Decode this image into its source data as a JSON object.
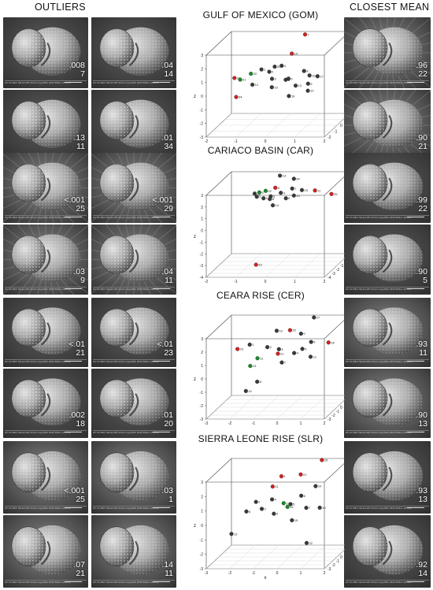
{
  "headers": {
    "outliers": "OUTLIERS",
    "closest_mean": "CLOSEST MEAN"
  },
  "panels": [
    {
      "title": "GULF OF MEXICO (GOM)",
      "outliers": [
        {
          "p": ".008",
          "id": "7"
        },
        {
          "p": ".04",
          "id": "14"
        },
        {
          "p": ".13",
          "id": "11"
        },
        {
          "p": ".01",
          "id": "34"
        }
      ],
      "closest": [
        {
          "p": ".96",
          "id": "22"
        },
        {
          "p": ".90",
          "id": "21"
        }
      ]
    },
    {
      "title": "CARIACO BASIN (CAR)",
      "outliers": [
        {
          "p": "<.001",
          "id": "25"
        },
        {
          "p": "<.001",
          "id": "29"
        },
        {
          "p": ".03",
          "id": "9"
        },
        {
          "p": ".04",
          "id": "11"
        }
      ],
      "closest": [
        {
          "p": ".99",
          "id": "22"
        },
        {
          "p": ".90",
          "id": "5"
        }
      ]
    },
    {
      "title": "CEARA RISE (CER)",
      "outliers": [
        {
          "p": "<.01",
          "id": "21"
        },
        {
          "p": "<.01",
          "id": "23"
        },
        {
          "p": ".002",
          "id": "18"
        },
        {
          "p": ".01",
          "id": "20"
        }
      ],
      "closest": [
        {
          "p": ".93",
          "id": "11"
        },
        {
          "p": ".90",
          "id": "13"
        }
      ]
    },
    {
      "title": "SIERRA LEONE RISE (SLR)",
      "outliers": [
        {
          "p": "<.001",
          "id": "25"
        },
        {
          "p": ".03",
          "id": "1"
        },
        {
          "p": ".07",
          "id": "21"
        },
        {
          "p": ".14",
          "id": "11"
        }
      ],
      "closest": [
        {
          "p": ".93",
          "id": "13"
        },
        {
          "p": ".92",
          "id": "14"
        }
      ]
    }
  ],
  "sem_meta": "HV 10.00kV  SE  det  WD 10mm  mag 600x  HFW 500um  100 um",
  "colors": {
    "outlier": "#d42020",
    "closest": "#1a8a2a",
    "specimen": "#3a3a3a"
  },
  "chart_data": [
    {
      "type": "scatter",
      "title": "GULF OF MEXICO (GOM)",
      "xlabel": "",
      "ylabel": "",
      "zlabel": "z",
      "xlim": [
        -2,
        2
      ],
      "ylim": [
        -2,
        2
      ],
      "zlim": [
        -3,
        3
      ],
      "x_ticks": [
        "-2",
        "-1",
        "0",
        "1",
        "2"
      ],
      "y_ticks": [
        "-2",
        "-1",
        "0",
        "1",
        "2"
      ],
      "z_ticks": [
        "-3",
        "-2",
        "-1",
        "0",
        "1",
        "2",
        "3"
      ],
      "points": [
        {
          "id": "7",
          "x": 0.6,
          "y": 1.5,
          "z": 3.0,
          "group": "outlier"
        },
        {
          "id": "14",
          "x": 0.3,
          "y": 0.8,
          "z": 1.9,
          "group": "outlier"
        },
        {
          "id": "11",
          "x": -1.6,
          "y": 0.6,
          "z": 0.2,
          "group": "outlier"
        },
        {
          "id": "34",
          "x": -1.2,
          "y": -1.0,
          "z": -0.5,
          "group": "outlier"
        },
        {
          "id": "22",
          "x": -1.0,
          "y": 0.4,
          "z": 0.6,
          "group": "closest"
        },
        {
          "id": "21",
          "x": -1.3,
          "y": 0.1,
          "z": 0.3,
          "group": "closest"
        },
        {
          "id": "1",
          "x": -0.6,
          "y": 0.2,
          "z": 1.0,
          "group": "other"
        },
        {
          "id": "2",
          "x": -0.4,
          "y": 0.5,
          "z": 0.7,
          "group": "other"
        },
        {
          "id": "3",
          "x": -0.2,
          "y": 0.0,
          "z": 0.4,
          "group": "other"
        },
        {
          "id": "4",
          "x": 0.0,
          "y": 0.6,
          "z": 1.1,
          "group": "other"
        },
        {
          "id": "5",
          "x": 0.2,
          "y": 0.3,
          "z": 0.2,
          "group": "other"
        },
        {
          "id": "6",
          "x": 0.4,
          "y": -0.2,
          "z": 0.5,
          "group": "other"
        },
        {
          "id": "8",
          "x": 0.8,
          "y": 0.4,
          "z": 0.8,
          "group": "other"
        },
        {
          "id": "9",
          "x": 1.0,
          "y": 0.1,
          "z": 0.0,
          "group": "other"
        },
        {
          "id": "10",
          "x": 1.1,
          "y": -0.4,
          "z": -0.3,
          "group": "other"
        },
        {
          "id": "12",
          "x": -0.8,
          "y": -0.3,
          "z": 0.1,
          "group": "other"
        },
        {
          "id": "13",
          "x": 0.6,
          "y": 0.0,
          "z": -0.1,
          "group": "other"
        },
        {
          "id": "15",
          "x": -0.1,
          "y": -0.5,
          "z": 0.0,
          "group": "other"
        },
        {
          "id": "16",
          "x": 0.9,
          "y": 0.8,
          "z": 0.3,
          "group": "other"
        },
        {
          "id": "17",
          "x": 1.3,
          "y": 0.2,
          "z": 0.5,
          "group": "other"
        },
        {
          "id": "18",
          "x": 2.0,
          "y": 1.8,
          "z": 1.8,
          "group": "other"
        },
        {
          "id": "19",
          "x": 0.5,
          "y": -0.6,
          "z": -0.6,
          "group": "other"
        },
        {
          "id": "20",
          "x": -0.3,
          "y": 0.9,
          "z": 0.9,
          "group": "other"
        }
      ]
    },
    {
      "type": "scatter",
      "title": "CARIACO BASIN (CAR)",
      "xlabel": "",
      "ylabel": "",
      "zlabel": "z",
      "xlim": [
        -2,
        2
      ],
      "ylim": [
        -4,
        2
      ],
      "zlim": [
        -4,
        3
      ],
      "x_ticks": [
        "-2",
        "-1",
        "0",
        "1",
        "2"
      ],
      "y_ticks": [
        "-4",
        "-3",
        "-2",
        "-1",
        "0",
        "1",
        "2"
      ],
      "z_ticks": [
        "-4",
        "-3",
        "-2",
        "-1",
        "0",
        "1",
        "2",
        "3"
      ],
      "points": [
        {
          "id": "25",
          "x": 1.6,
          "y": 0.5,
          "z": 1.6,
          "group": "outlier"
        },
        {
          "id": "29",
          "x": -0.6,
          "y": -2.0,
          "z": -3.6,
          "group": "outlier"
        },
        {
          "id": "9",
          "x": -0.4,
          "y": 1.2,
          "z": 1.9,
          "group": "outlier"
        },
        {
          "id": "11",
          "x": 1.0,
          "y": 0.8,
          "z": 1.8,
          "group": "outlier"
        },
        {
          "id": "22",
          "x": -0.7,
          "y": 1.0,
          "z": 1.7,
          "group": "closest"
        },
        {
          "id": "5",
          "x": -0.9,
          "y": 0.9,
          "z": 1.6,
          "group": "closest"
        },
        {
          "id": "34",
          "x": 0.2,
          "y": 1.4,
          "z": 2.6,
          "group": "other"
        },
        {
          "id": "13",
          "x": -0.3,
          "y": 1.6,
          "z": 2.8,
          "group": "other"
        },
        {
          "id": "1",
          "x": -1.0,
          "y": 1.0,
          "z": 1.2,
          "group": "other"
        },
        {
          "id": "2",
          "x": -0.8,
          "y": 1.2,
          "z": 1.0,
          "group": "other"
        },
        {
          "id": "3",
          "x": -0.5,
          "y": 0.8,
          "z": 1.3,
          "group": "other"
        },
        {
          "id": "4",
          "x": -0.2,
          "y": 1.1,
          "z": 1.5,
          "group": "other"
        },
        {
          "id": "6",
          "x": 0.0,
          "y": 0.9,
          "z": 1.1,
          "group": "other"
        },
        {
          "id": "7",
          "x": 0.2,
          "y": 1.0,
          "z": 1.9,
          "group": "other"
        },
        {
          "id": "8",
          "x": -0.6,
          "y": 1.3,
          "z": 0.9,
          "group": "other"
        },
        {
          "id": "10",
          "x": 0.3,
          "y": 0.7,
          "z": 1.4,
          "group": "other"
        },
        {
          "id": "12",
          "x": -1.1,
          "y": 1.2,
          "z": 1.4,
          "group": "other"
        },
        {
          "id": "14",
          "x": -0.4,
          "y": 0.6,
          "z": 0.6,
          "group": "other"
        },
        {
          "id": "15",
          "x": 0.5,
          "y": 1.2,
          "z": 1.7,
          "group": "other"
        }
      ]
    },
    {
      "type": "scatter",
      "title": "CEARA RISE (CER)",
      "xlabel": "",
      "ylabel": "",
      "zlabel": "z",
      "xlim": [
        -3,
        2
      ],
      "ylim": [
        -3,
        3
      ],
      "zlim": [
        -3,
        3
      ],
      "x_ticks": [
        "-3",
        "-2",
        "-1",
        "0",
        "1",
        "2"
      ],
      "y_ticks": [
        "-3",
        "-2",
        "-1",
        "0",
        "1",
        "2",
        "3"
      ],
      "z_ticks": [
        "-3",
        "-2",
        "-1",
        "0",
        "1",
        "2",
        "3"
      ],
      "points": [
        {
          "id": "21",
          "x": -0.5,
          "y": 0.0,
          "z": 1.0,
          "group": "outlier"
        },
        {
          "id": "23",
          "x": -2.3,
          "y": 0.5,
          "z": 1.2,
          "group": "outlier"
        },
        {
          "id": "18",
          "x": 1.5,
          "y": 0.8,
          "z": 1.6,
          "group": "outlier"
        },
        {
          "id": "20",
          "x": -0.2,
          "y": 1.2,
          "z": 2.4,
          "group": "outlier"
        },
        {
          "id": "11",
          "x": -1.4,
          "y": 0.2,
          "z": 0.6,
          "group": "closest"
        },
        {
          "id": "13",
          "x": -1.6,
          "y": -0.4,
          "z": 0.2,
          "group": "closest"
        },
        {
          "id": "27",
          "x": 0.6,
          "y": 2.4,
          "z": 3.0,
          "group": "other"
        },
        {
          "id": "1",
          "x": -1.8,
          "y": 0.6,
          "z": 1.5,
          "group": "other"
        },
        {
          "id": "2",
          "x": -1.0,
          "y": 0.3,
          "z": 1.4,
          "group": "other"
        },
        {
          "id": "3",
          "x": -0.6,
          "y": 0.8,
          "z": 1.1,
          "group": "other"
        },
        {
          "id": "4",
          "x": 0.1,
          "y": 0.5,
          "z": 0.9,
          "group": "other"
        },
        {
          "id": "5",
          "x": 0.5,
          "y": 0.2,
          "z": 1.3,
          "group": "other"
        },
        {
          "id": "6",
          "x": 0.8,
          "y": 0.6,
          "z": 1.7,
          "group": "other"
        },
        {
          "id": "7",
          "x": -0.3,
          "y": -0.2,
          "z": 0.4,
          "group": "other"
        },
        {
          "id": "8",
          "x": -1.2,
          "y": -1.0,
          "z": -0.8,
          "group": "other"
        },
        {
          "id": "9",
          "x": 0.3,
          "y": 1.0,
          "z": 2.2,
          "group": "other"
        },
        {
          "id": "10",
          "x": -0.8,
          "y": 1.4,
          "z": 2.3,
          "group": "other"
        },
        {
          "id": "12",
          "x": 0.9,
          "y": -0.1,
          "z": 0.8,
          "group": "other"
        },
        {
          "id": "14",
          "x": -1.5,
          "y": -2.0,
          "z": -1.2,
          "group": "other"
        }
      ]
    },
    {
      "type": "scatter",
      "title": "SIERRA LEONE RISE (SLR)",
      "xlabel": "x",
      "ylabel": "",
      "zlabel": "z",
      "xlim": [
        -3,
        2
      ],
      "ylim": [
        -3,
        3
      ],
      "zlim": [
        -3,
        3
      ],
      "x_ticks": [
        "-3",
        "-2",
        "-1",
        "0",
        "1",
        "2"
      ],
      "y_ticks": [
        "-3",
        "-2",
        "-1",
        "0",
        "1",
        "2",
        "3"
      ],
      "z_ticks": [
        "-3",
        "-2",
        "-1",
        "0",
        "1",
        "2",
        "3"
      ],
      "points": [
        {
          "id": "25",
          "x": 0.9,
          "y": 2.6,
          "z": 3.2,
          "group": "outlier"
        },
        {
          "id": "1",
          "x": -0.6,
          "y": 1.4,
          "z": 2.2,
          "group": "outlier"
        },
        {
          "id": "21",
          "x": 0.2,
          "y": 1.5,
          "z": 2.3,
          "group": "outlier"
        },
        {
          "id": "11",
          "x": -0.9,
          "y": 1.0,
          "z": 1.6,
          "group": "outlier"
        },
        {
          "id": "13",
          "x": -0.4,
          "y": 0.8,
          "z": 0.5,
          "group": "closest"
        },
        {
          "id": "14",
          "x": -0.2,
          "y": 0.6,
          "z": 0.3,
          "group": "closest"
        },
        {
          "id": "2",
          "x": -1.5,
          "y": 0.4,
          "z": 0.7,
          "group": "other"
        },
        {
          "id": "3",
          "x": -1.2,
          "y": 0.1,
          "z": 0.3,
          "group": "other"
        },
        {
          "id": "4",
          "x": -0.8,
          "y": 0.3,
          "z": 0.9,
          "group": "other"
        },
        {
          "id": "5",
          "x": 0.0,
          "y": 0.2,
          "z": 0.6,
          "group": "other"
        },
        {
          "id": "6",
          "x": 0.4,
          "y": 0.5,
          "z": 1.1,
          "group": "other"
        },
        {
          "id": "7",
          "x": 0.7,
          "y": 0.0,
          "z": 0.4,
          "group": "other"
        },
        {
          "id": "8",
          "x": -1.8,
          "y": -0.2,
          "z": 0.2,
          "group": "other"
        },
        {
          "id": "9",
          "x": -0.6,
          "y": -0.4,
          "z": 0.1,
          "group": "other"
        },
        {
          "id": "10",
          "x": 0.9,
          "y": 1.1,
          "z": 1.6,
          "group": "other"
        },
        {
          "id": "12",
          "x": -2.2,
          "y": -1.5,
          "z": -1.0,
          "group": "other"
        },
        {
          "id": "15",
          "x": 0.2,
          "y": -0.6,
          "z": -0.3,
          "group": "other"
        },
        {
          "id": "16",
          "x": 1.2,
          "y": 0.4,
          "z": 0.3,
          "group": "other"
        },
        {
          "id": "22",
          "x": 1.0,
          "y": -1.6,
          "z": -1.6,
          "group": "other"
        }
      ]
    }
  ]
}
